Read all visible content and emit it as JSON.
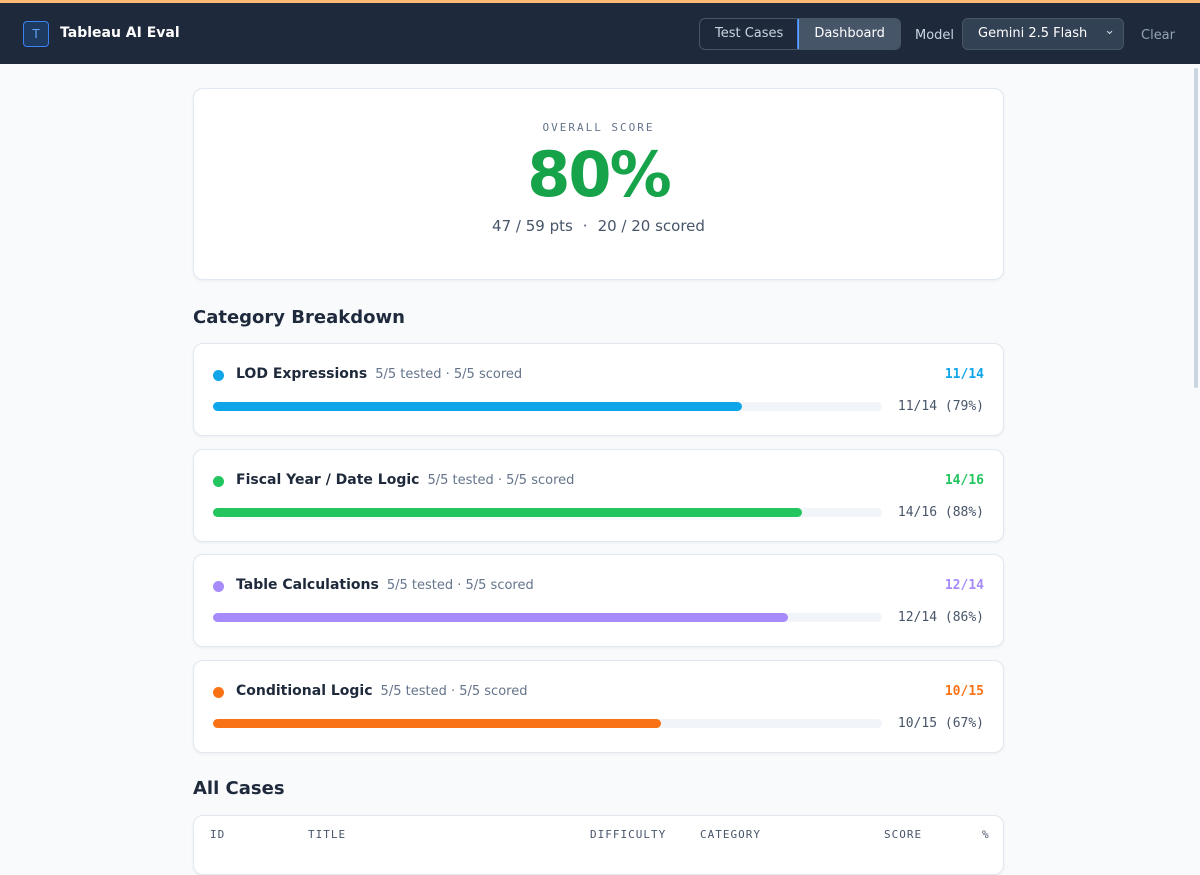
{
  "header": {
    "logo": "T",
    "title": "Tableau AI Eval",
    "tabs": [
      "Test Cases",
      "Dashboard"
    ],
    "active_tab": 1,
    "model_label": "Model",
    "model": "Gemini 2.5 Flash",
    "clear": "Clear"
  },
  "overall": {
    "label": "OVERALL SCORE",
    "score": "80%",
    "points": "47 / 59 pts",
    "separator": "·",
    "scored": "20 / 20 scored"
  },
  "breakdown": {
    "title": "Category Breakdown",
    "categories": [
      {
        "name": "LOD Expressions",
        "meta": "5/5 tested · 5/5 scored",
        "score": "11/14",
        "detail": "11/14 (79%)",
        "percent": 79,
        "color": "#0ea5e9"
      },
      {
        "name": "Fiscal Year / Date Logic",
        "meta": "5/5 tested · 5/5 scored",
        "score": "14/16",
        "detail": "14/16 (88%)",
        "percent": 88,
        "color": "#22c55e"
      },
      {
        "name": "Table Calculations",
        "meta": "5/5 tested · 5/5 scored",
        "score": "12/14",
        "detail": "12/14 (86%)",
        "percent": 86,
        "color": "#a78bfa"
      },
      {
        "name": "Conditional Logic",
        "meta": "5/5 tested · 5/5 scored",
        "score": "10/15",
        "detail": "10/15 (67%)",
        "percent": 67,
        "color": "#f97316"
      }
    ]
  },
  "cases": {
    "title": "All Cases",
    "columns": [
      "ID",
      "TITLE",
      "DIFFICULTY",
      "CATEGORY",
      "SCORE",
      "%"
    ]
  }
}
